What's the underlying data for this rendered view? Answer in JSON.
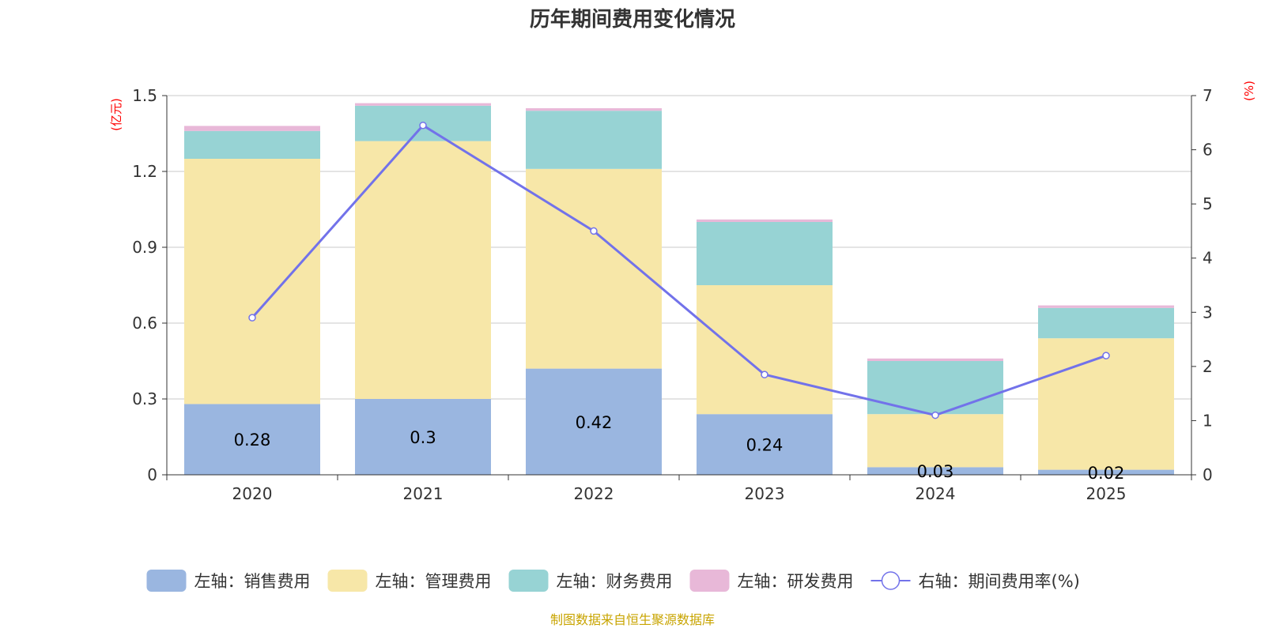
{
  "chart_data": {
    "type": "bar",
    "stacked": true,
    "title": "历年期间费用变化情况",
    "categories": [
      "2020",
      "2021",
      "2022",
      "2023",
      "2024",
      "2025"
    ],
    "series": [
      {
        "name": "左轴：销售费用",
        "axis": "left",
        "color": "#9ab6e0",
        "values": [
          0.28,
          0.3,
          0.42,
          0.24,
          0.03,
          0.02
        ],
        "labels": [
          "0.28",
          "0.3",
          "0.42",
          "0.24",
          "0.03",
          "0.02"
        ]
      },
      {
        "name": "左轴：管理费用",
        "axis": "left",
        "color": "#f7e7a8",
        "values": [
          0.97,
          1.02,
          0.79,
          0.51,
          0.21,
          0.52
        ]
      },
      {
        "name": "左轴：财务费用",
        "axis": "left",
        "color": "#97d3d4",
        "values": [
          0.11,
          0.14,
          0.23,
          0.25,
          0.21,
          0.12
        ]
      },
      {
        "name": "左轴：研发费用",
        "axis": "left",
        "color": "#e8b8d8",
        "values": [
          0.02,
          0.01,
          0.01,
          0.01,
          0.01,
          0.01
        ]
      }
    ],
    "line_series": {
      "name": "右轴：期间费用率(%)",
      "axis": "right",
      "color": "#7272ea",
      "values": [
        2.9,
        6.45,
        4.5,
        1.85,
        1.1,
        2.2
      ]
    },
    "left_axis": {
      "unit": "(亿元)",
      "ylim": [
        0,
        1.5
      ],
      "ticks": [
        "0",
        "0.3",
        "0.6",
        "0.9",
        "1.2",
        "1.5"
      ]
    },
    "right_axis": {
      "unit": "(%)",
      "ylim": [
        0,
        7
      ],
      "ticks": [
        "0",
        "1",
        "2",
        "3",
        "4",
        "5",
        "6",
        "7"
      ]
    },
    "grid": true,
    "legend_position": "bottom"
  },
  "source_text": "制图数据来自恒生聚源数据库"
}
